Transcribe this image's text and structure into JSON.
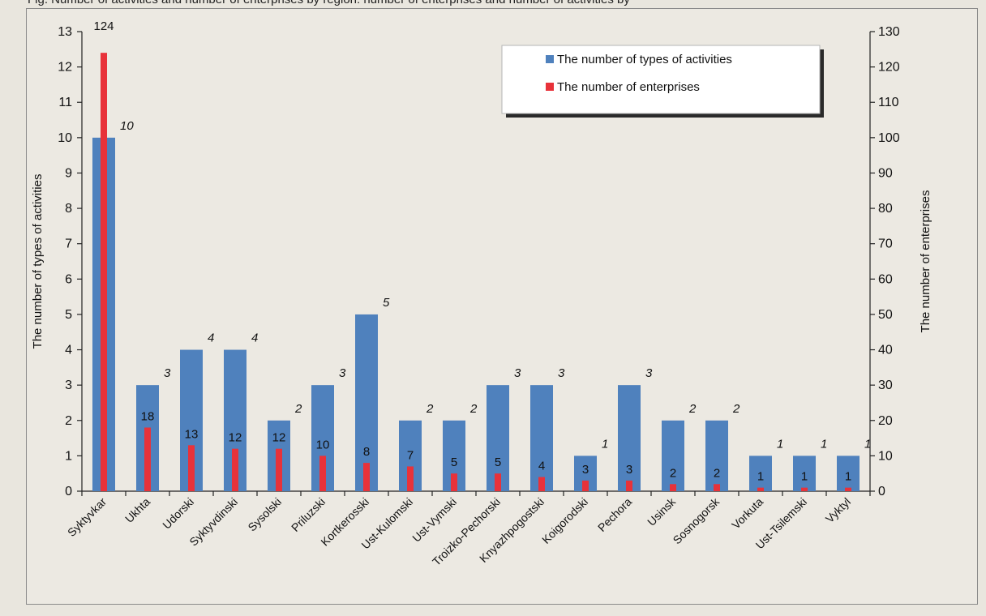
{
  "caption": "Fig. Number of activities and number of enterprises by region: number of enterprises and number of activities by",
  "chart_data": {
    "type": "bar",
    "categories": [
      "Syktyvkar",
      "Ukhta",
      "Udorski",
      "Syktyvdinski",
      "Sysolski",
      "Priluzski",
      "Kortkerosski",
      "Ust-Kulomski",
      "Ust-Vymski",
      "Troizko-Pechorski",
      "Knyazhpogostski",
      "Koigorodski",
      "Pechora",
      "Usinsk",
      "Sosnogorsk",
      "Vorkuta",
      "Ust-Tsilemski",
      "Vyktyl"
    ],
    "series": [
      {
        "name": "The number of types of activities",
        "axis": "left",
        "color": "#4f81bd",
        "values": [
          10,
          3,
          4,
          4,
          2,
          3,
          5,
          2,
          2,
          3,
          3,
          1,
          3,
          2,
          2,
          1,
          1,
          1
        ]
      },
      {
        "name": "The number of enterprises",
        "axis": "right",
        "color": "#e8323a",
        "values": [
          124,
          18,
          13,
          12,
          12,
          10,
          8,
          7,
          5,
          5,
          4,
          3,
          3,
          2,
          2,
          1,
          1,
          1
        ]
      }
    ],
    "ylabel_left": "The number of types of activities",
    "ylabel_right": "The number of enterprises",
    "ylim_left": [
      0,
      13
    ],
    "ylim_right": [
      0,
      130
    ],
    "yticks_left": [
      0,
      1,
      2,
      3,
      4,
      5,
      6,
      7,
      8,
      9,
      10,
      11,
      12,
      13
    ],
    "yticks_right": [
      0,
      10,
      20,
      30,
      40,
      50,
      60,
      70,
      80,
      90,
      100,
      110,
      120,
      130
    ],
    "legend_position": "top-right",
    "grid": false
  }
}
